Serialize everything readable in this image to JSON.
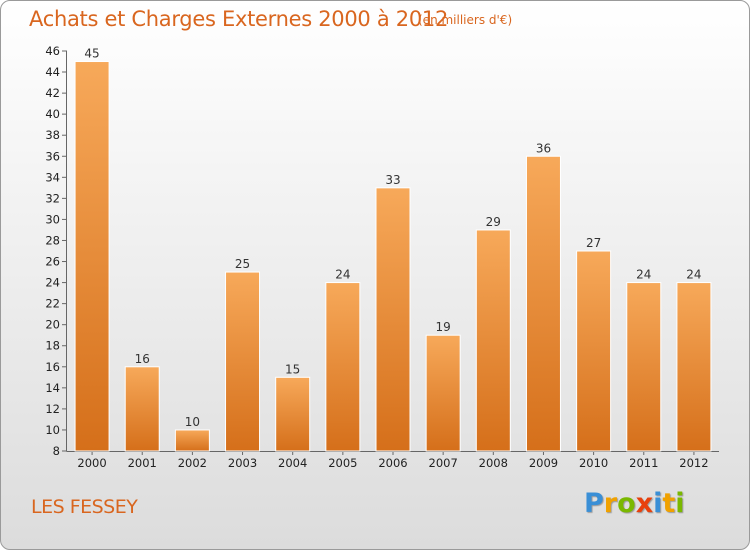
{
  "title": "Achats et Charges Externes 2000 à 2012",
  "subtitle": "(en milliers d'€)",
  "town": "LES FESSEY",
  "logo": {
    "text": "Proxiti",
    "letters": [
      {
        "ch": "P",
        "color": "#3a8fd6"
      },
      {
        "ch": "r",
        "color": "#f0a100"
      },
      {
        "ch": "o",
        "color": "#7ab800"
      },
      {
        "ch": "x",
        "color": "#e8400c"
      },
      {
        "ch": "i",
        "color": "#3a8fd6"
      },
      {
        "ch": "t",
        "color": "#f0a100"
      },
      {
        "ch": "i",
        "color": "#7ab800"
      }
    ]
  },
  "colors": {
    "bar_top": "#f7a95a",
    "bar_bottom": "#d56f1a",
    "accent": "#d9661f"
  },
  "chart_data": {
    "type": "bar",
    "categories": [
      "2000",
      "2001",
      "2002",
      "2003",
      "2004",
      "2005",
      "2006",
      "2007",
      "2008",
      "2009",
      "2010",
      "2011",
      "2012"
    ],
    "values": [
      45,
      16,
      10,
      25,
      15,
      24,
      33,
      19,
      29,
      36,
      27,
      24,
      24
    ],
    "data_labels": [
      "45",
      "16",
      "10",
      "25",
      "15",
      "24",
      "33",
      "19",
      "29",
      "36",
      "27",
      "24",
      "24"
    ],
    "title": "Achats et Charges Externes 2000 à 2012",
    "ylim": [
      8,
      46
    ],
    "yticks": [
      8,
      10,
      12,
      14,
      16,
      18,
      20,
      22,
      24,
      26,
      28,
      30,
      32,
      34,
      36,
      38,
      40,
      42,
      44,
      46
    ],
    "grid": false,
    "legend": "none"
  }
}
